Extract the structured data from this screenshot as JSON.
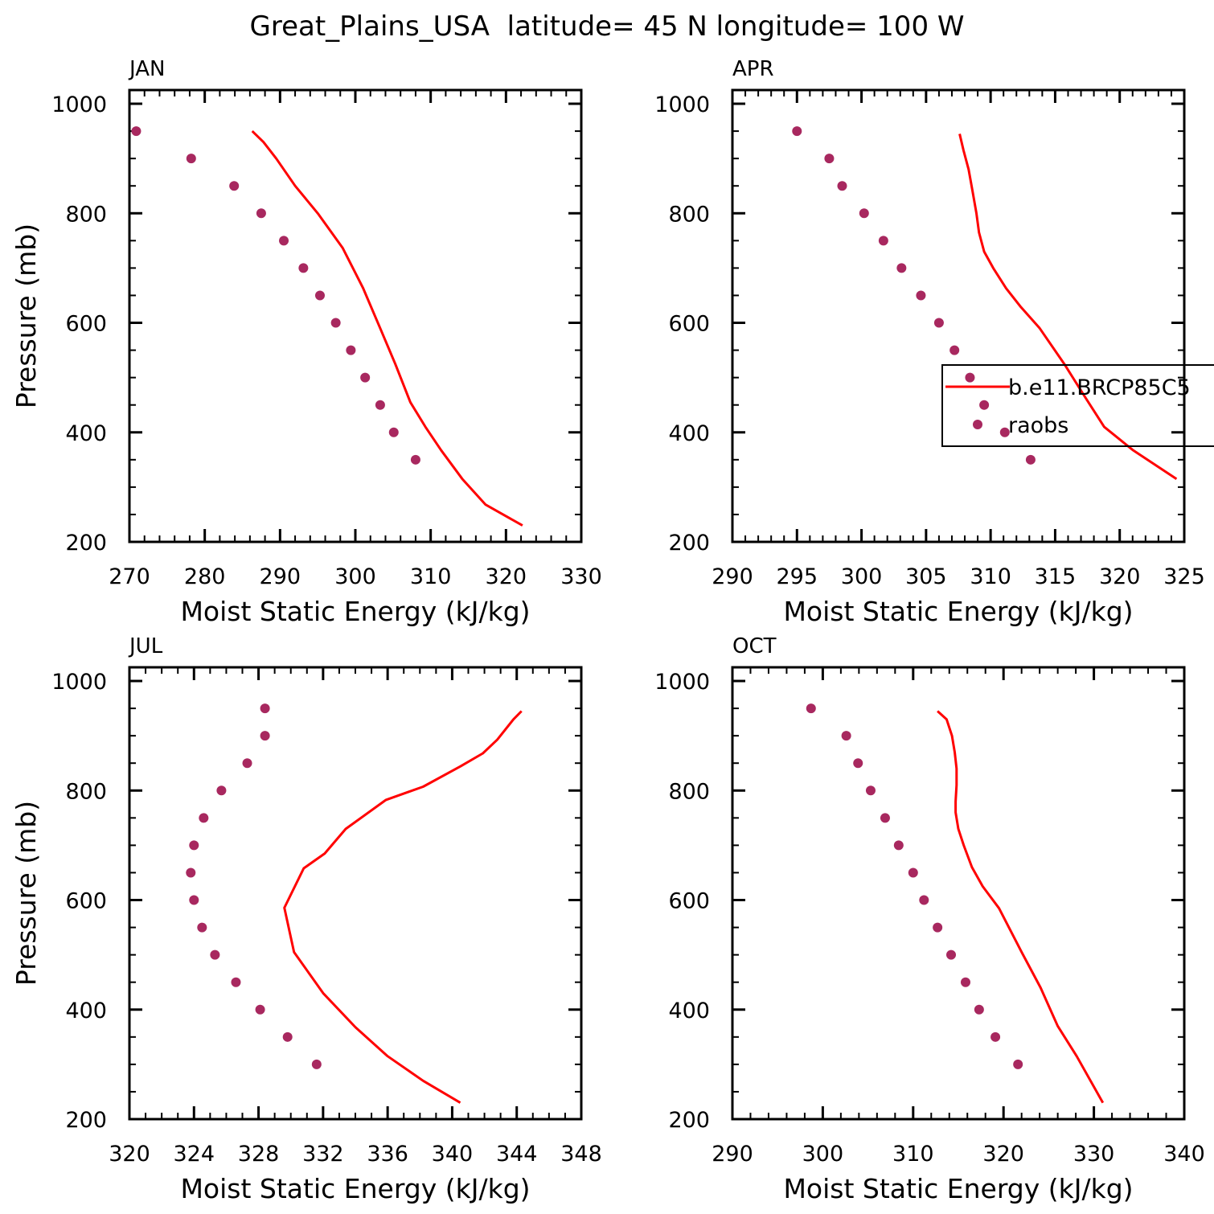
{
  "title": "Great_Plains_USA  latitude= 45 N longitude= 100 W",
  "colors": {
    "model": "#ff0000",
    "obs": "#a8285f",
    "axis": "#000000"
  },
  "legend": {
    "model_label": "b.e11.BRCP85C5",
    "obs_label": "raobs"
  },
  "chart_data": [
    {
      "type": "line",
      "panel": "JAN",
      "title": "JAN",
      "xlabel": "Moist Static Energy (kJ/kg)",
      "ylabel": "Pressure (mb)",
      "xlim": [
        270,
        330
      ],
      "ylim": [
        1025,
        200
      ],
      "xticks": [
        270,
        280,
        290,
        300,
        310,
        320,
        330
      ],
      "xminor": 2,
      "yticks": [
        200,
        400,
        600,
        800,
        1000
      ],
      "yminor": 50,
      "legend": false,
      "series": [
        {
          "name": "b.e11.BRCP85C5",
          "kind": "line",
          "x": [
            286.3,
            287.8,
            289.5,
            292,
            295,
            298.3,
            301,
            303.3,
            305.3,
            307.3,
            309.3,
            311.4,
            314.2,
            317.3,
            322.2
          ],
          "y": [
            950,
            930,
            900,
            850,
            800,
            737,
            664,
            590,
            525,
            455,
            410,
            367,
            315,
            268,
            230
          ]
        },
        {
          "name": "raobs",
          "kind": "scatter",
          "x": [
            270.9,
            278.2,
            283.9,
            287.5,
            290.5,
            293.1,
            295.3,
            297.4,
            299.4,
            301.3,
            303.3,
            305.1,
            308.0
          ],
          "y": [
            950,
            900,
            850,
            800,
            750,
            700,
            650,
            600,
            550,
            500,
            450,
            400,
            350
          ]
        }
      ]
    },
    {
      "type": "line",
      "panel": "APR",
      "title": "APR",
      "xlabel": "Moist Static Energy (kJ/kg)",
      "ylabel": "",
      "xlim": [
        290,
        325
      ],
      "ylim": [
        1025,
        200
      ],
      "xticks": [
        290,
        295,
        300,
        305,
        310,
        315,
        320,
        325
      ],
      "xminor": 1,
      "yticks": [
        200,
        400,
        600,
        800,
        1000
      ],
      "yminor": 50,
      "legend": true,
      "series": [
        {
          "name": "b.e11.BRCP85C5",
          "kind": "line",
          "x": [
            307.6,
            307.9,
            308.3,
            308.6,
            308.9,
            309.1,
            309.5,
            310.2,
            311.2,
            312.3,
            313.8,
            315.7,
            317.3,
            318.8,
            321.0,
            324.4
          ],
          "y": [
            945,
            915,
            880,
            840,
            800,
            765,
            730,
            700,
            663,
            630,
            590,
            525,
            465,
            410,
            368,
            315
          ]
        },
        {
          "name": "raobs",
          "kind": "scatter",
          "x": [
            295.0,
            297.5,
            298.5,
            300.2,
            301.7,
            303.1,
            304.6,
            306.0,
            307.2,
            308.4,
            309.5,
            311.1,
            313.1
          ],
          "y": [
            950,
            900,
            850,
            800,
            750,
            700,
            650,
            600,
            550,
            500,
            450,
            400,
            350
          ]
        }
      ]
    },
    {
      "type": "line",
      "panel": "JUL",
      "title": "JUL",
      "xlabel": "Moist Static Energy (kJ/kg)",
      "ylabel": "Pressure (mb)",
      "xlim": [
        320,
        348
      ],
      "ylim": [
        1025,
        200
      ],
      "xticks": [
        320,
        324,
        328,
        332,
        336,
        340,
        344,
        348
      ],
      "xminor": 1,
      "yticks": [
        200,
        400,
        600,
        800,
        1000
      ],
      "yminor": 50,
      "legend": false,
      "series": [
        {
          "name": "b.e11.BRCP85C5",
          "kind": "line",
          "x": [
            344.3,
            343.8,
            342.8,
            341.9,
            340.5,
            338.2,
            335.9,
            333.4,
            332.1,
            330.8,
            329.6,
            330.2,
            332.0,
            334.0,
            336.0,
            338.2,
            340.5
          ],
          "y": [
            945,
            930,
            893,
            868,
            844,
            807,
            783,
            730,
            685,
            658,
            586,
            505,
            430,
            368,
            315,
            270,
            230
          ]
        },
        {
          "name": "raobs",
          "kind": "scatter",
          "x": [
            328.4,
            328.4,
            327.3,
            325.7,
            324.6,
            324.0,
            323.8,
            324.0,
            324.5,
            325.3,
            326.6,
            328.1,
            329.8,
            331.6
          ],
          "y": [
            950,
            900,
            850,
            800,
            750,
            700,
            650,
            600,
            550,
            500,
            450,
            400,
            350,
            300
          ]
        }
      ]
    },
    {
      "type": "line",
      "panel": "OCT",
      "title": "OCT",
      "xlabel": "Moist Static Energy (kJ/kg)",
      "ylabel": "",
      "xlim": [
        290,
        340
      ],
      "ylim": [
        1025,
        200
      ],
      "xticks": [
        290,
        300,
        310,
        320,
        330,
        340
      ],
      "xminor": 2,
      "yticks": [
        200,
        400,
        600,
        800,
        1000
      ],
      "yminor": 50,
      "legend": false,
      "series": [
        {
          "name": "b.e11.BRCP85C5",
          "kind": "line",
          "x": [
            312.7,
            313.7,
            314.3,
            314.6,
            314.8,
            314.8,
            314.7,
            314.7,
            315.0,
            315.6,
            316.5,
            317.7,
            319.5,
            322.0,
            324.1,
            326.0,
            328.1,
            331.0
          ],
          "y": [
            945,
            930,
            900,
            870,
            840,
            810,
            780,
            760,
            730,
            700,
            660,
            625,
            585,
            505,
            440,
            370,
            315,
            230
          ]
        },
        {
          "name": "raobs",
          "kind": "scatter",
          "x": [
            298.7,
            302.6,
            303.9,
            305.3,
            306.9,
            308.4,
            310.0,
            311.2,
            312.7,
            314.2,
            315.8,
            317.3,
            319.1,
            321.6
          ],
          "y": [
            950,
            900,
            850,
            800,
            750,
            700,
            650,
            600,
            550,
            500,
            450,
            400,
            350,
            300
          ]
        }
      ]
    }
  ]
}
